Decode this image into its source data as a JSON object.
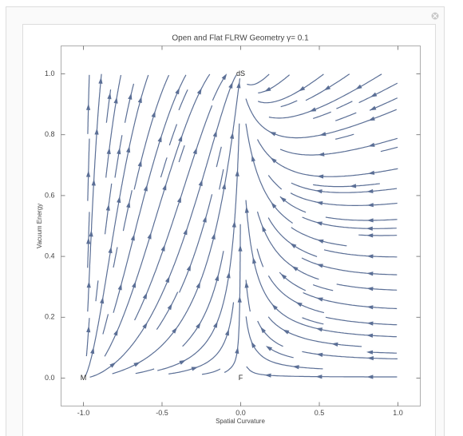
{
  "chart_data": {
    "type": "streamplot",
    "title": "Open and Flat FLRW Geometry γ= 0.1",
    "x_label": "Spatial Curvature",
    "y_label": "Vacuum Energy",
    "xlim": [
      -1.142,
      1.142
    ],
    "ylim": [
      -0.092,
      1.092
    ],
    "xticks": [
      {
        "value": -1,
        "label": "-1.0"
      },
      {
        "value": -0.5,
        "label": "-0.5"
      },
      {
        "value": 0,
        "label": "0.0"
      },
      {
        "value": 0.5,
        "label": "0.5"
      },
      {
        "value": 1,
        "label": "1.0"
      }
    ],
    "yticks": [
      {
        "value": 0,
        "label": "0.0"
      },
      0.2,
      0.4,
      0.6,
      0.8,
      {
        "value": 1,
        "label": "1.0"
      }
    ],
    "annotations": [
      {
        "text": "M",
        "x": -1,
        "y": 0
      },
      {
        "text": "dS",
        "x": 0,
        "y": 1
      },
      {
        "text": "F",
        "x": 0,
        "y": 0
      }
    ],
    "color": "#5b6f96"
  }
}
